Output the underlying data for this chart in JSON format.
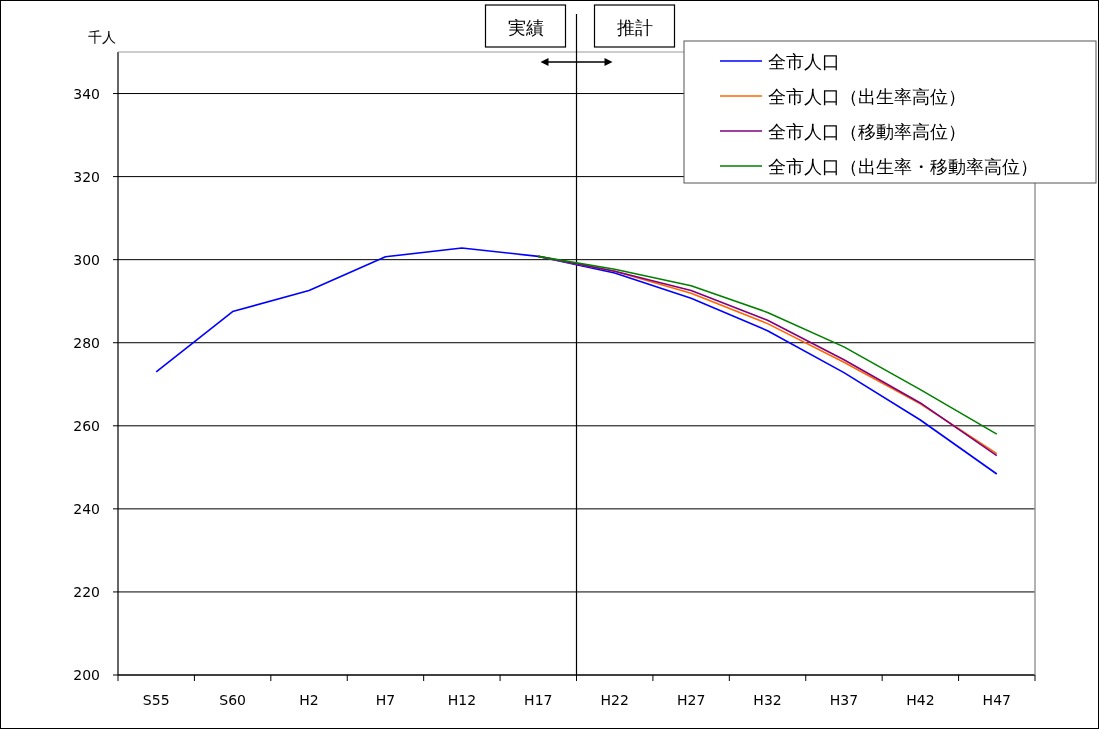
{
  "chart_data": {
    "type": "line",
    "ylabel": "千人",
    "categories": [
      "S55",
      "S60",
      "H2",
      "H7",
      "H12",
      "H17",
      "H22",
      "H27",
      "H32",
      "H37",
      "H42",
      "H47"
    ],
    "series": [
      {
        "name": "全市人口",
        "color": "#0000ff",
        "values": [
          273.0,
          287.5,
          292.6,
          300.7,
          302.8,
          300.8,
          296.8,
          290.7,
          282.9,
          272.8,
          261.4,
          248.4
        ]
      },
      {
        "name": "全市人口（出生率高位）",
        "color": "#ff6600",
        "values": [
          null,
          null,
          null,
          null,
          null,
          300.8,
          297.2,
          291.9,
          284.6,
          275.3,
          265.3,
          253.3
        ]
      },
      {
        "name": "全市人口（移動率高位）",
        "color": "#800080",
        "values": [
          null,
          null,
          null,
          null,
          null,
          300.8,
          297.2,
          292.6,
          285.4,
          275.9,
          265.5,
          252.8
        ]
      },
      {
        "name": "全市人口（出生率・移動率高位）",
        "color": "#008000",
        "values": [
          null,
          null,
          null,
          null,
          null,
          300.8,
          297.7,
          293.7,
          287.3,
          279.0,
          268.7,
          258.0
        ]
      }
    ],
    "ylim": [
      200,
      350
    ],
    "yticks": [
      200,
      220,
      240,
      260,
      280,
      300,
      320,
      340
    ],
    "grid": "y",
    "legend": "top right",
    "marker": "none",
    "line_style": "solid",
    "annotations": [
      "実績",
      "推計"
    ]
  }
}
